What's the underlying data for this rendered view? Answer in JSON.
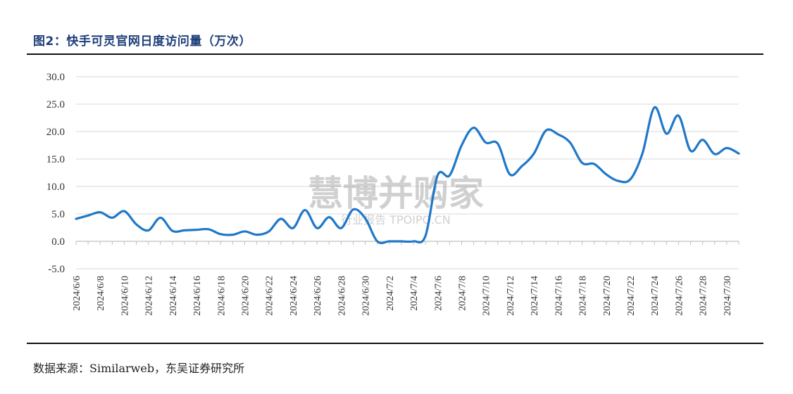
{
  "title": "图2：快手可灵官网日度访问量（万次）",
  "source": "数据来源：Similarweb，东吴证券研究所",
  "watermark": {
    "main": "慧博并购家",
    "sub": "行业报告 TPOIPO.CN"
  },
  "colors": {
    "line": "#1f78c8",
    "grid": "#d9d9d9",
    "title": "#1f3f7a"
  },
  "chart_data": {
    "type": "line",
    "title": "图2：快手可灵官网日度访问量（万次）",
    "ylim": [
      -5.0,
      30.0
    ],
    "yticks": [
      "30.0",
      "25.0",
      "20.0",
      "15.0",
      "10.0",
      "5.0",
      "0.0",
      "-5.0"
    ],
    "grid": true,
    "xtick_labels": [
      "2024/6/6",
      "2024/6/8",
      "2024/6/10",
      "2024/6/12",
      "2024/6/14",
      "2024/6/16",
      "2024/6/18",
      "2024/6/20",
      "2024/6/22",
      "2024/6/24",
      "2024/6/26",
      "2024/6/28",
      "2024/6/30",
      "2024/7/2",
      "2024/7/4",
      "2024/7/6",
      "2024/7/8",
      "2024/7/10",
      "2024/7/12",
      "2024/7/14",
      "2024/7/16",
      "2024/7/18",
      "2024/7/20",
      "2024/7/22",
      "2024/7/24",
      "2024/7/26",
      "2024/7/28",
      "2024/7/30"
    ],
    "x": [
      "2024/6/6",
      "2024/6/7",
      "2024/6/8",
      "2024/6/9",
      "2024/6/10",
      "2024/6/11",
      "2024/6/12",
      "2024/6/13",
      "2024/6/14",
      "2024/6/15",
      "2024/6/16",
      "2024/6/17",
      "2024/6/18",
      "2024/6/19",
      "2024/6/20",
      "2024/6/21",
      "2024/6/22",
      "2024/6/23",
      "2024/6/24",
      "2024/6/25",
      "2024/6/26",
      "2024/6/27",
      "2024/6/28",
      "2024/6/29",
      "2024/6/30",
      "2024/7/1",
      "2024/7/2",
      "2024/7/3",
      "2024/7/4",
      "2024/7/5",
      "2024/7/6",
      "2024/7/7",
      "2024/7/8",
      "2024/7/9",
      "2024/7/10",
      "2024/7/11",
      "2024/7/12",
      "2024/7/13",
      "2024/7/14",
      "2024/7/15",
      "2024/7/16",
      "2024/7/17",
      "2024/7/18",
      "2024/7/19",
      "2024/7/20",
      "2024/7/21",
      "2024/7/22",
      "2024/7/23",
      "2024/7/24",
      "2024/7/25",
      "2024/7/26",
      "2024/7/27",
      "2024/7/28",
      "2024/7/29",
      "2024/7/30",
      "2024/7/31"
    ],
    "series": [
      {
        "values": [
          4.1,
          4.7,
          5.3,
          4.3,
          5.5,
          3.1,
          2.0,
          4.3,
          1.9,
          2.0,
          2.1,
          2.2,
          1.3,
          1.2,
          1.8,
          1.2,
          1.8,
          4.1,
          2.4,
          5.7,
          2.4,
          4.4,
          2.4,
          5.8,
          4.2,
          0.0,
          0.0,
          0.0,
          0.0,
          1.0,
          12.0,
          12.0,
          17.5,
          20.7,
          18.0,
          17.8,
          12.2,
          13.7,
          16.0,
          20.2,
          19.5,
          18.0,
          14.3,
          14.1,
          12.2,
          11.0,
          11.3,
          16.0,
          24.4,
          19.6,
          22.9,
          16.5,
          18.5,
          15.9,
          17.0,
          16.0
        ]
      }
    ]
  }
}
